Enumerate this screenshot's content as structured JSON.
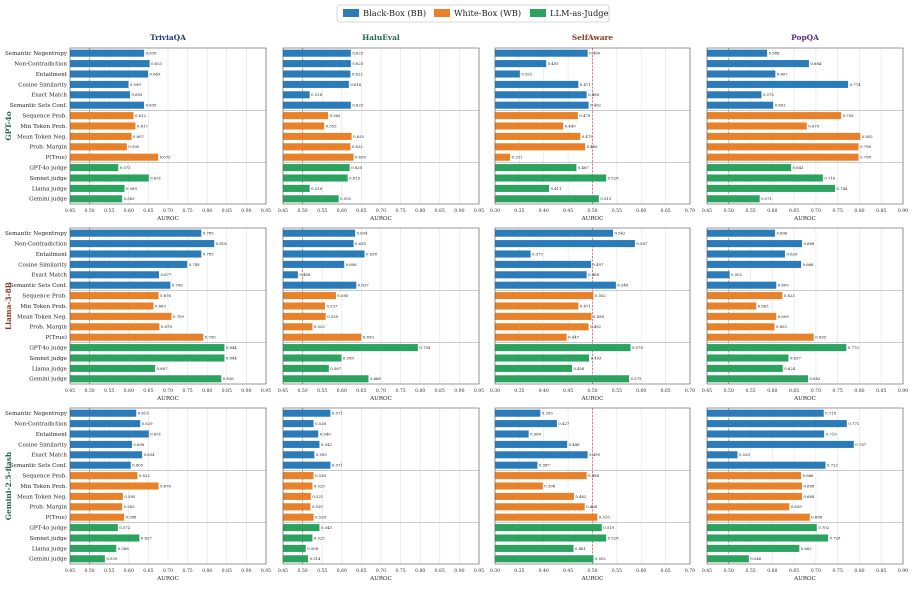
{
  "legend": [
    {
      "label": "Black-Box (BB)",
      "color": "#2b7bb9"
    },
    {
      "label": "White-Box (WB)",
      "color": "#e8822a"
    },
    {
      "label": "LLM-as-Judge",
      "color": "#2ca25f"
    }
  ],
  "colors": {
    "bb": "#2b7bb9",
    "wb": "#e8822a",
    "judge": "#2ca25f",
    "ref_line": "#c0392b"
  },
  "chart_data": {
    "type": "bar",
    "orientation": "horizontal",
    "xlabel": "AUROC",
    "datasets": [
      "TriviaQA",
      "HaluEval",
      "SelfAware",
      "PopQA"
    ],
    "dataset_colors": [
      "#1f3a75",
      "#1f6b4a",
      "#8b3a1e",
      "#5b2a86"
    ],
    "models": [
      "GPT-4o",
      "Llama-3-8B",
      "Gemini-2.5-flash"
    ],
    "model_colors": [
      "#1f6b4a",
      "#8b3a1e",
      "#1f6b4a"
    ],
    "categories": [
      "Semantic Negentropy",
      "Non-Contradiction",
      "Entailment",
      "Cosine Similarity",
      "Exact Match",
      "Semantic Sets Conf.",
      "Sequence Prob.",
      "Min Token Prob.",
      "Mean Token Neg.",
      "Prob. Margin",
      "P(True)",
      "GPT-4o judge",
      "Sonnet judge",
      "Llama judge",
      "Gemini judge"
    ],
    "category_groups": [
      "bb",
      "bb",
      "bb",
      "bb",
      "bb",
      "bb",
      "wb",
      "wb",
      "wb",
      "wb",
      "wb",
      "judge",
      "judge",
      "judge",
      "judge"
    ],
    "xlim_by_dataset": [
      [
        0.45,
        0.95
      ],
      [
        0.45,
        0.95
      ],
      [
        0.3,
        0.7
      ],
      [
        0.45,
        0.9
      ]
    ],
    "xticks_by_dataset": [
      [
        "0.45",
        "0.50",
        "0.55",
        "0.60",
        "0.65",
        "0.70",
        "0.75",
        "0.80",
        "0.85",
        "0.90",
        "0.95"
      ],
      [
        "0.45",
        "0.50",
        "0.55",
        "0.60",
        "0.65",
        "0.70",
        "0.75",
        "0.80",
        "0.85",
        "0.90",
        "0.95"
      ],
      [
        "0.30",
        "0.35",
        "0.40",
        "0.45",
        "0.50",
        "0.55",
        "0.60",
        "0.65",
        "0.70"
      ],
      [
        "0.45",
        "0.50",
        "0.55",
        "0.60",
        "0.65",
        "0.70",
        "0.75",
        "0.80",
        "0.85",
        "0.90"
      ]
    ],
    "reference_line": 0.5,
    "values": [
      [
        [
          0.639,
          0.653,
          0.649,
          0.599,
          0.603,
          0.639,
          0.612,
          0.617,
          0.607,
          0.595,
          0.675,
          0.573,
          0.651,
          0.589,
          0.583
        ],
        [
          0.623,
          0.623,
          0.622,
          0.618,
          0.518,
          0.623,
          0.565,
          0.555,
          0.625,
          0.622,
          0.63,
          0.62,
          0.615,
          0.518,
          0.592
        ],
        [
          0.49,
          0.405,
          0.351,
          0.471,
          0.488,
          0.492,
          0.47,
          0.44,
          0.475,
          0.485,
          0.331,
          0.467,
          0.528,
          0.411,
          0.513
        ],
        [
          0.588,
          0.684,
          0.607,
          0.774,
          0.575,
          0.602,
          0.758,
          0.679,
          0.802,
          0.798,
          0.798,
          0.643,
          0.716,
          0.744,
          0.571
        ]
      ],
      [
        [
          0.785,
          0.818,
          0.785,
          0.749,
          0.677,
          0.706,
          0.676,
          0.663,
          0.709,
          0.678,
          0.79,
          0.844,
          0.844,
          0.667,
          0.836
        ],
        [
          0.634,
          0.63,
          0.658,
          0.606,
          0.488,
          0.637,
          0.585,
          0.557,
          0.559,
          0.525,
          0.65,
          0.794,
          0.599,
          0.567,
          0.668
        ],
        [
          0.542,
          0.587,
          0.373,
          0.497,
          0.488,
          0.548,
          0.502,
          0.471,
          0.498,
          0.492,
          0.447,
          0.578,
          0.493,
          0.458,
          0.575
        ],
        [
          0.606,
          0.668,
          0.629,
          0.666,
          0.502,
          0.609,
          0.623,
          0.563,
          0.609,
          0.605,
          0.695,
          0.77,
          0.637,
          0.624,
          0.682
        ]
      ],
      [
        [
          0.619,
          0.629,
          0.651,
          0.608,
          0.634,
          0.605,
          0.622,
          0.676,
          0.585,
          0.583,
          0.588,
          0.572,
          0.627,
          0.568,
          0.539
        ],
        [
          0.571,
          0.528,
          0.54,
          0.543,
          0.53,
          0.571,
          0.528,
          0.525,
          0.521,
          0.52,
          0.528,
          0.543,
          0.525,
          0.508,
          0.514
        ],
        [
          0.393,
          0.427,
          0.369,
          0.448,
          0.49,
          0.387,
          0.488,
          0.398,
          0.462,
          0.484,
          0.51,
          0.519,
          0.528,
          0.461,
          0.502
        ],
        [
          0.718,
          0.771,
          0.719,
          0.787,
          0.52,
          0.722,
          0.666,
          0.668,
          0.668,
          0.639,
          0.686,
          0.702,
          0.728,
          0.662,
          0.546
        ]
      ]
    ]
  }
}
